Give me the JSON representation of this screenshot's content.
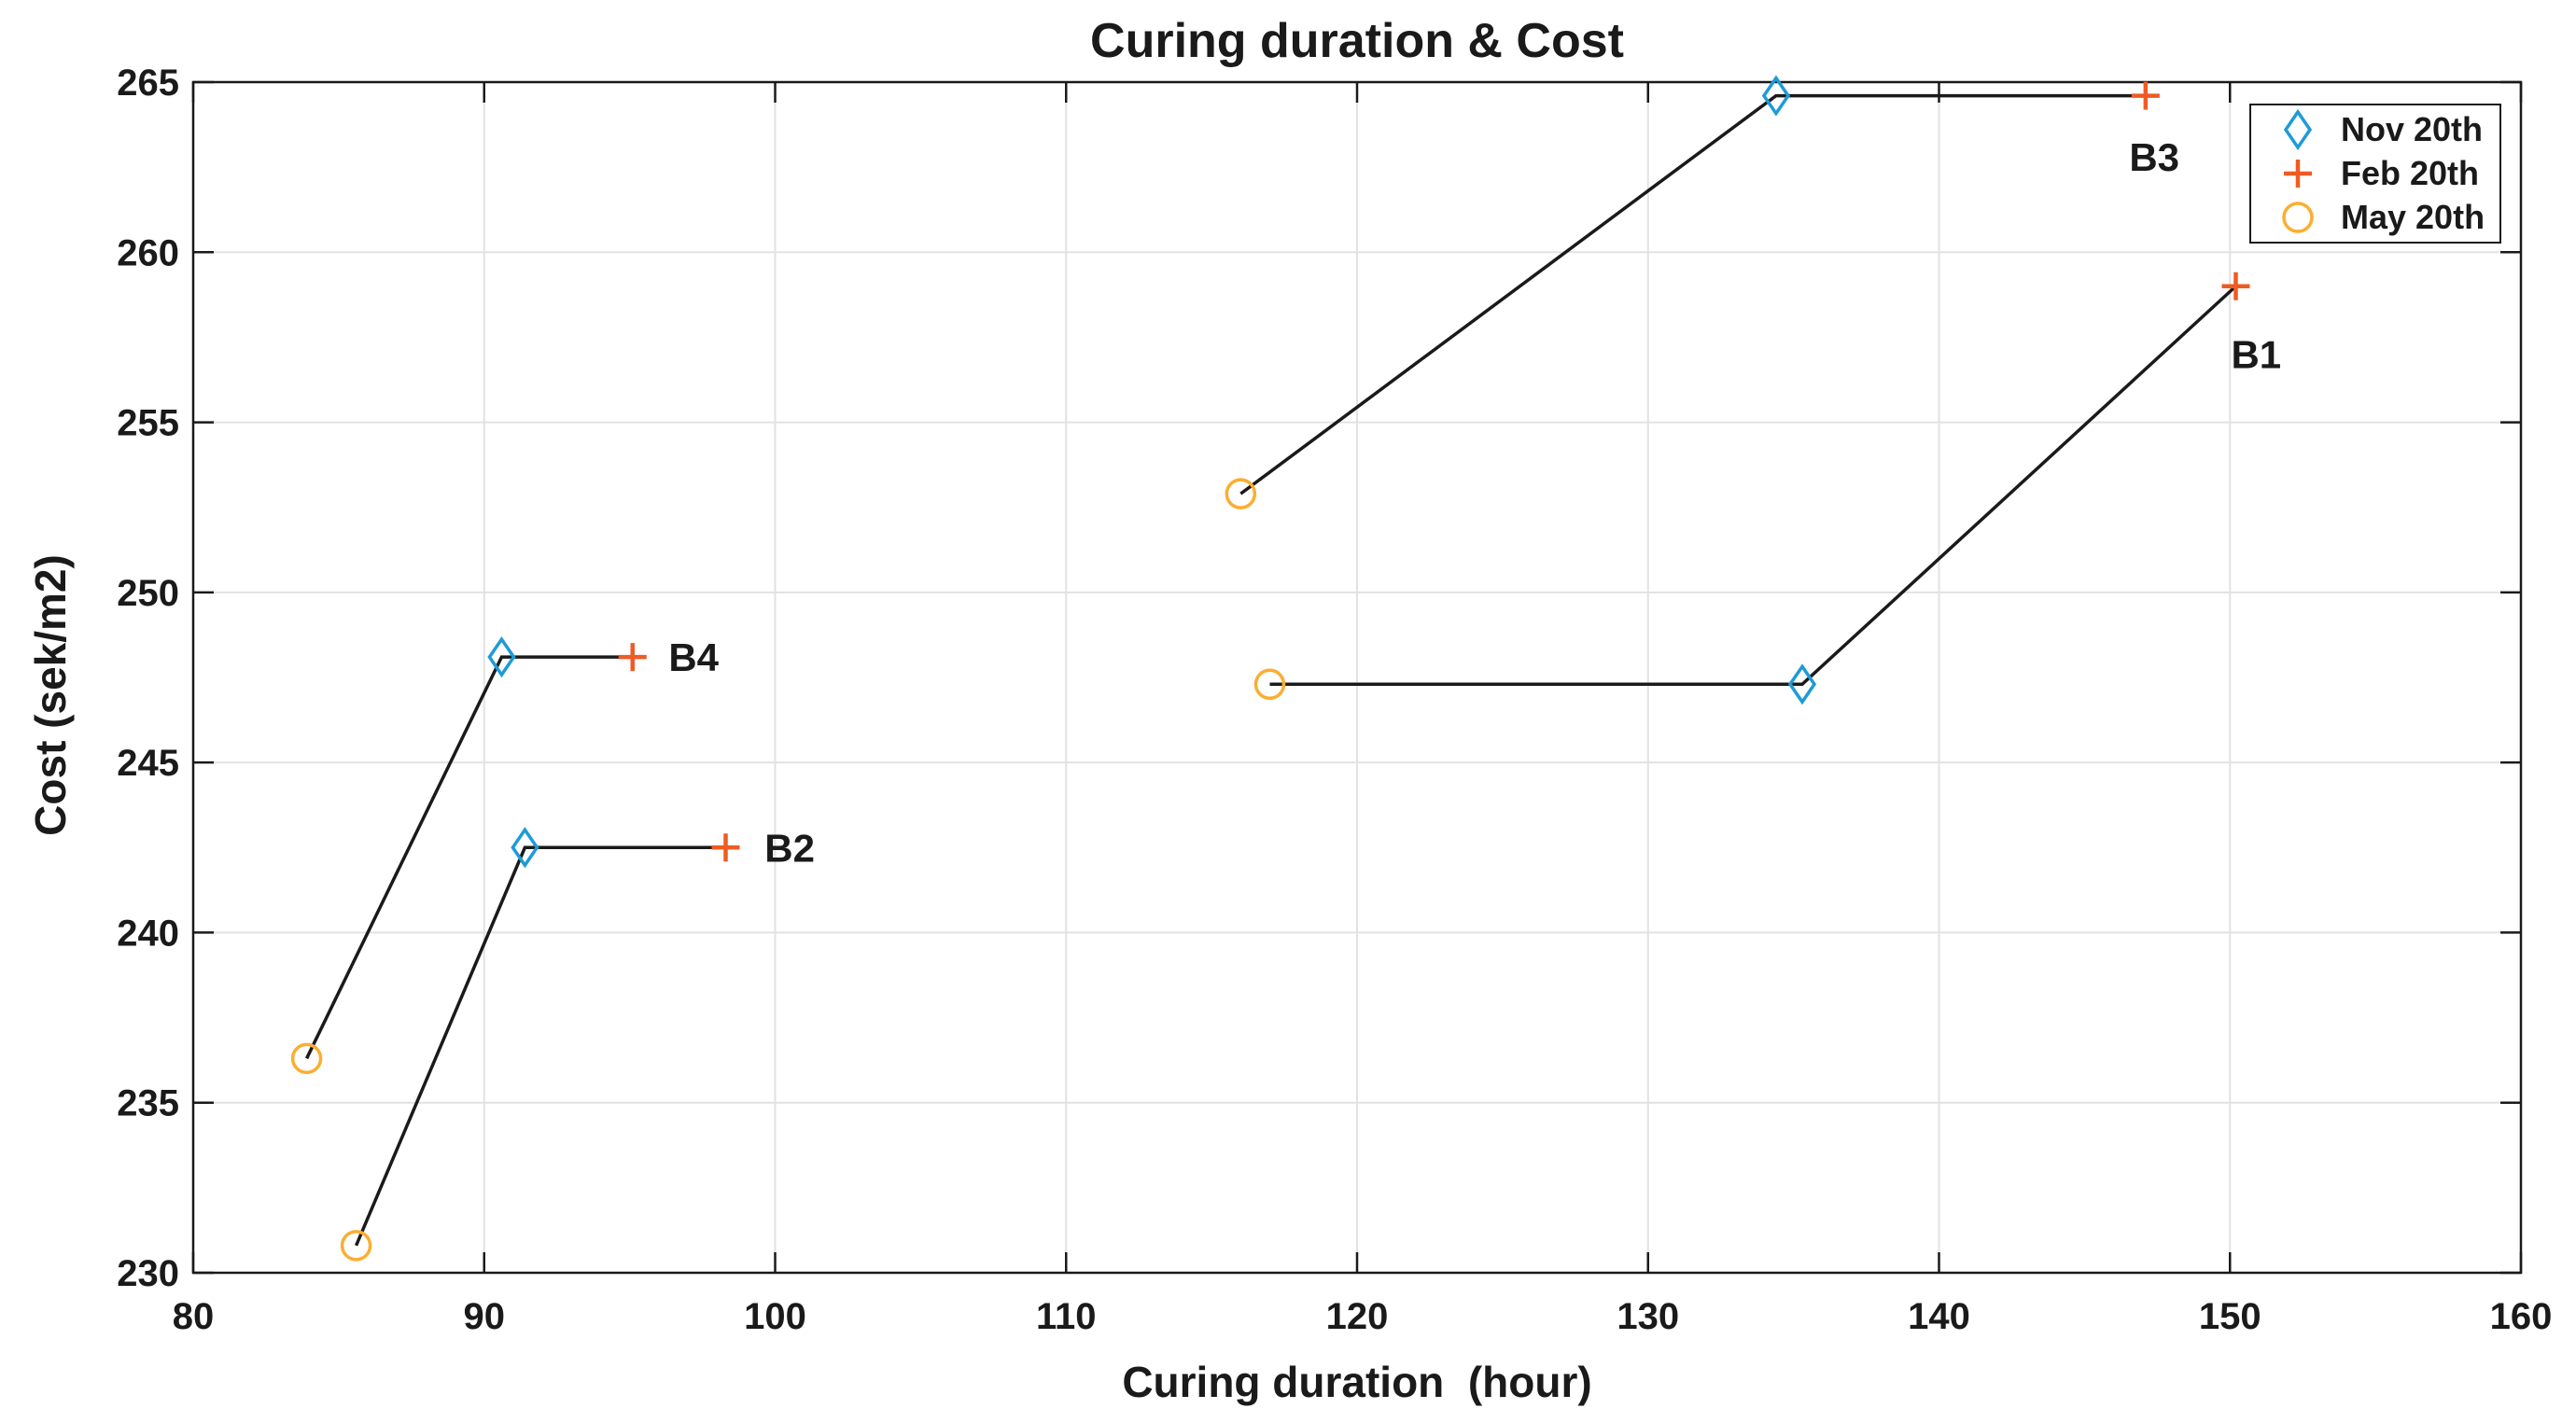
{
  "chart_data": {
    "type": "line",
    "title": "Curing duration & Cost",
    "xlabel": "Curing duration  (hour)",
    "ylabel": "Cost (sek/m2)",
    "xlim": [
      80,
      160
    ],
    "ylim": [
      230,
      265
    ],
    "xticks": [
      80,
      90,
      100,
      110,
      120,
      130,
      140,
      150,
      160
    ],
    "yticks": [
      230,
      235,
      240,
      245,
      250,
      255,
      260,
      265
    ],
    "grid": true,
    "box": true,
    "background": "#ffffff",
    "line_color": "#1a1a1a",
    "legend": {
      "position": "top-right",
      "entries": [
        {
          "label": "Nov 20th",
          "marker": "diamond",
          "color": "#1e9bd7"
        },
        {
          "label": "Feb 20th",
          "marker": "plus",
          "color": "#ef5b23"
        },
        {
          "label": "May 20th",
          "marker": "circle",
          "color": "#fbae31"
        }
      ]
    },
    "series": [
      {
        "name": "B1",
        "label": "B1",
        "label_at": [
          150.9,
          257.0
        ],
        "points": [
          {
            "season": "May 20th",
            "marker": "circle",
            "x": 117.0,
            "y": 247.3
          },
          {
            "season": "Nov 20th",
            "marker": "diamond",
            "x": 135.3,
            "y": 247.3
          },
          {
            "season": "Feb 20th",
            "marker": "plus",
            "x": 150.2,
            "y": 259.0
          }
        ]
      },
      {
        "name": "B2",
        "label": "B2",
        "label_at": [
          100.5,
          242.5
        ],
        "points": [
          {
            "season": "May 20th",
            "marker": "circle",
            "x": 85.6,
            "y": 230.8
          },
          {
            "season": "Nov 20th",
            "marker": "diamond",
            "x": 91.4,
            "y": 242.5
          },
          {
            "season": "Feb 20th",
            "marker": "plus",
            "x": 98.3,
            "y": 242.5
          }
        ]
      },
      {
        "name": "B3",
        "label": "B3",
        "label_at": [
          147.4,
          262.8
        ],
        "points": [
          {
            "season": "May 20th",
            "marker": "circle",
            "x": 116.0,
            "y": 252.9
          },
          {
            "season": "Nov 20th",
            "marker": "diamond",
            "x": 134.4,
            "y": 264.6
          },
          {
            "season": "Feb 20th",
            "marker": "plus",
            "x": 147.1,
            "y": 264.6
          }
        ]
      },
      {
        "name": "B4",
        "label": "B4",
        "label_at": [
          97.2,
          248.1
        ],
        "points": [
          {
            "season": "May 20th",
            "marker": "circle",
            "x": 83.9,
            "y": 236.3
          },
          {
            "season": "Nov 20th",
            "marker": "diamond",
            "x": 90.6,
            "y": 248.1
          },
          {
            "season": "Feb 20th",
            "marker": "plus",
            "x": 95.1,
            "y": 248.1
          }
        ]
      }
    ]
  }
}
